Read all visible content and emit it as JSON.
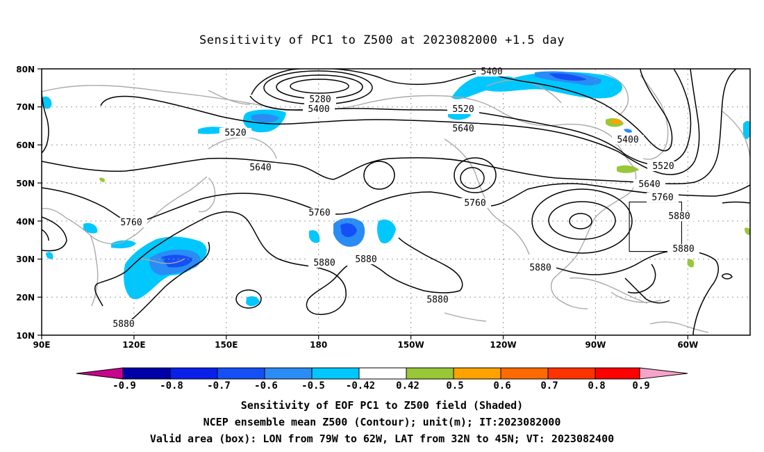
{
  "title": "Sensitivity of PC1 to Z500 at 2023082000 +1.5 day",
  "lat_labels": [
    "80N",
    "70N",
    "60N",
    "50N",
    "40N",
    "30N",
    "20N",
    "10N"
  ],
  "lon_labels": [
    "90E",
    "120E",
    "150E",
    "180",
    "150W",
    "120W",
    "90W",
    "60W"
  ],
  "contour_labels": [
    "5400",
    "5280",
    "5400",
    "5520",
    "5520",
    "5640",
    "5640",
    "5760",
    "5760",
    "5760",
    "5760",
    "5400",
    "5520",
    "5640",
    "5760",
    "5880",
    "5880",
    "5880",
    "5880",
    "5880",
    "5880",
    "5880"
  ],
  "colorbar": {
    "labels": [
      "-0.9",
      "-0.8",
      "-0.7",
      "-0.6",
      "-0.5",
      "-0.42",
      "0.42",
      "0.5",
      "0.6",
      "0.7",
      "0.8",
      "0.9"
    ],
    "colors": [
      "#c8038c",
      "#0000a8",
      "#0820ea",
      "#1450f5",
      "#2a8cf5",
      "#00c8ff",
      "#ffffff",
      "#98c837",
      "#ffa200",
      "#ff6a00",
      "#ff3300",
      "#ff0000",
      "#f5a3c8"
    ]
  },
  "caption": {
    "line1": "Sensitivity of EOF PC1 to Z500 field (Shaded)",
    "line2": "NCEP ensemble mean Z500 (Contour); unit(m); IT:2023082000",
    "line3": "Valid area (box): LON from 79W to 62W, LAT from 32N to 45N; VT: 2023082400"
  },
  "map_extent": {
    "lon": [
      "90E",
      "30W"
    ],
    "lat": [
      "10N",
      "80N"
    ]
  }
}
